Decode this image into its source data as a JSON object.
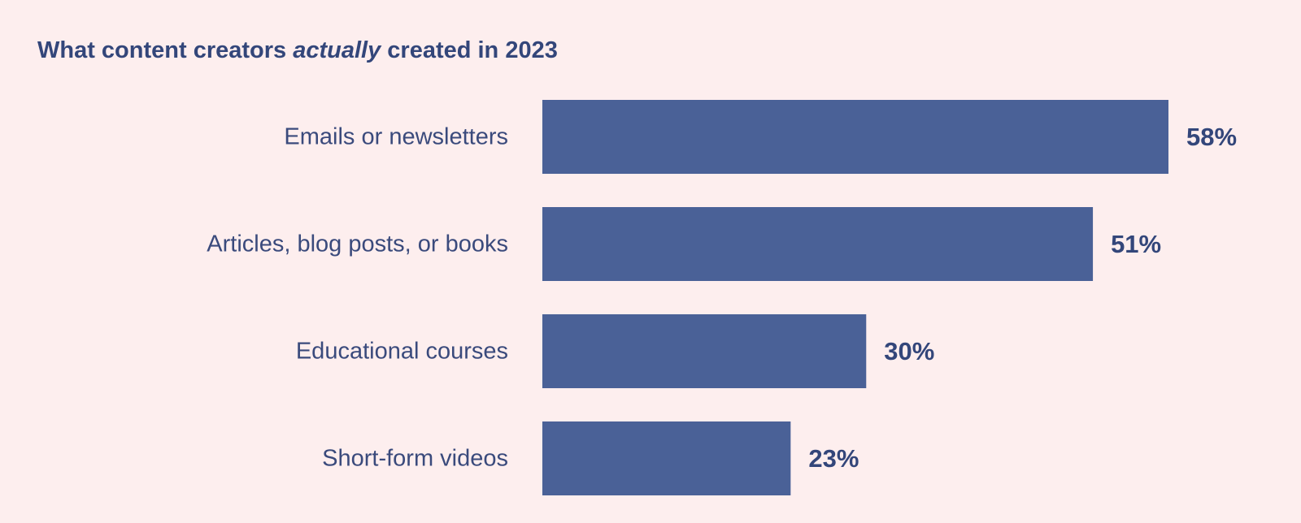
{
  "title": {
    "prefix": "What content creators ",
    "emphasis": "actually",
    "suffix": " created in 2023"
  },
  "colors": {
    "background": "#fdeeee",
    "bar": "#4a6197",
    "text": "#3a4a7c"
  },
  "chart_data": {
    "type": "bar",
    "orientation": "horizontal",
    "title": "What content creators actually created in 2023",
    "categories": [
      "Emails or newsletters",
      "Articles, blog posts, or books",
      "Educational courses",
      "Short-form videos"
    ],
    "values": [
      58,
      51,
      30,
      23
    ],
    "value_labels": [
      "58%",
      "51%",
      "30%",
      "23%"
    ],
    "unit": "%",
    "xlim": [
      0,
      58
    ],
    "grid": false,
    "legend": "none"
  }
}
